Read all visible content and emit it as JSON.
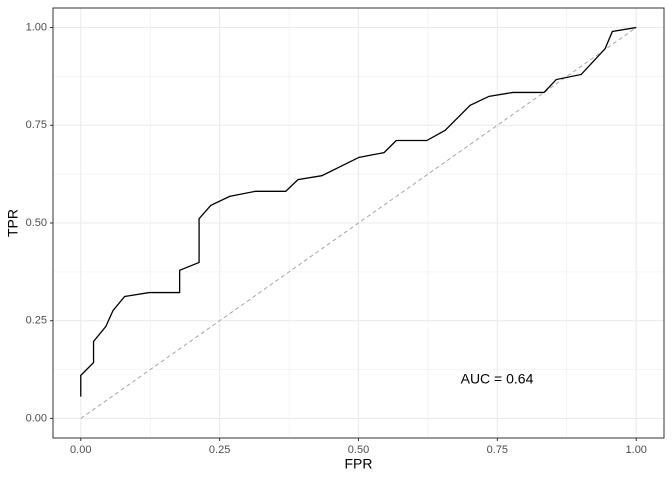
{
  "chart_data": {
    "type": "line",
    "x_label": "FPR",
    "y_label": "TPR",
    "annotation": "AUC = 0.64",
    "xlim": [
      -0.05,
      1.05
    ],
    "ylim": [
      -0.05,
      1.05
    ],
    "xticks": [
      {
        "value": 0,
        "label": "0.00"
      },
      {
        "value": 0.25,
        "label": "0.25"
      },
      {
        "value": 0.5,
        "label": "0.50"
      },
      {
        "value": 0.75,
        "label": "0.75"
      },
      {
        "value": 1,
        "label": "1.00"
      }
    ],
    "yticks": [
      {
        "value": 0,
        "label": "0.00"
      },
      {
        "value": 0.25,
        "label": "0.25"
      },
      {
        "value": 0.5,
        "label": "0.50"
      },
      {
        "value": 0.75,
        "label": "0.75"
      },
      {
        "value": 1,
        "label": "1.00"
      }
    ],
    "grid": true,
    "color": "#000000",
    "x": [
      0,
      0,
      0.023,
      0.023,
      0.045,
      0.058,
      0.079,
      0.123,
      0.178,
      0.178,
      0.213,
      0.213,
      0.234,
      0.268,
      0.314,
      0.369,
      0.391,
      0.434,
      0.501,
      0.546,
      0.568,
      0.623,
      0.656,
      0.701,
      0.735,
      0.778,
      0.834,
      0.856,
      0.901,
      0.944,
      0.957,
      1
    ],
    "values": [
      0.056,
      0.11,
      0.143,
      0.197,
      0.235,
      0.276,
      0.312,
      0.322,
      0.322,
      0.379,
      0.399,
      0.511,
      0.545,
      0.568,
      0.581,
      0.581,
      0.611,
      0.621,
      0.668,
      0.68,
      0.711,
      0.711,
      0.737,
      0.801,
      0.824,
      0.834,
      0.834,
      0.867,
      0.88,
      0.946,
      0.99,
      1
    ]
  }
}
